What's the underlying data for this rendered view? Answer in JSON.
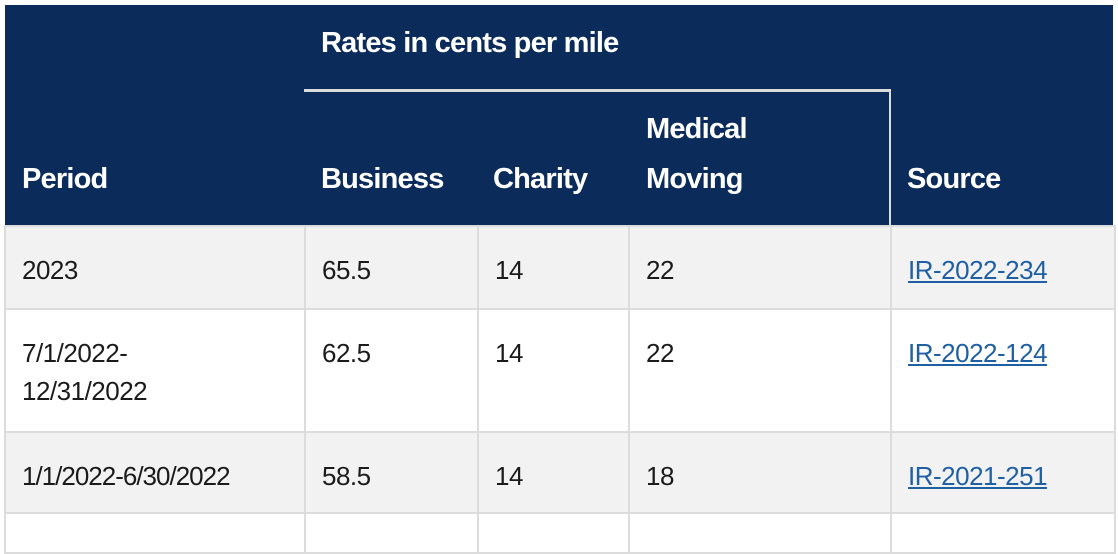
{
  "header": {
    "group_label": "Rates in cents per mile",
    "columns": [
      "Period",
      "Business",
      "Charity",
      "Medical Moving",
      "Source"
    ],
    "medical_line1": "Medical",
    "medical_line2": "Moving"
  },
  "rows": [
    {
      "period": "2023",
      "business": "65.5",
      "charity": "14",
      "medical_moving": "22",
      "source": "IR-2022-234"
    },
    {
      "period": "7/1/2022-12/31/2022",
      "business": "62.5",
      "charity": "14",
      "medical_moving": "22",
      "source": "IR-2022-124"
    },
    {
      "period": "1/1/2022-6/30/2022",
      "business": "58.5",
      "charity": "14",
      "medical_moving": "18",
      "source": "IR-2021-251"
    }
  ],
  "colors": {
    "header_bg": "#0b2c5b",
    "link": "#1f5fa4",
    "stripe": "#f2f2f2"
  }
}
